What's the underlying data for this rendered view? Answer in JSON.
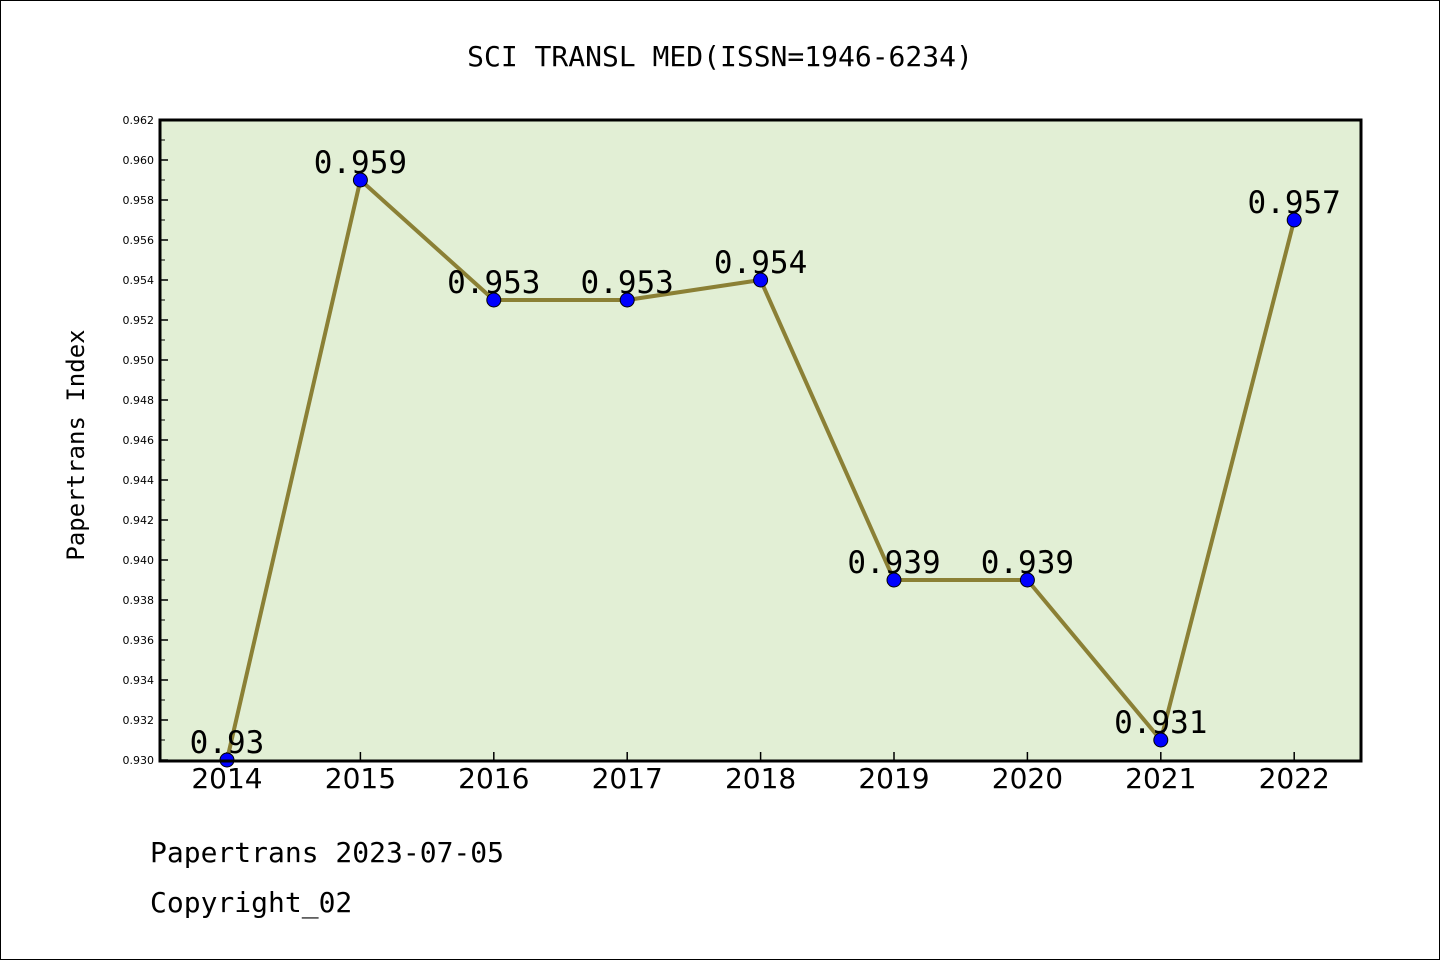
{
  "chart_data": {
    "type": "line",
    "title": "SCI TRANSL MED(ISSN=1946-6234)",
    "ylabel": "Papertrans Index",
    "xlabel": "",
    "categories": [
      "2014",
      "2015",
      "2016",
      "2017",
      "2018",
      "2019",
      "2020",
      "2021",
      "2022"
    ],
    "values": [
      0.93,
      0.959,
      0.953,
      0.953,
      0.954,
      0.939,
      0.939,
      0.931,
      0.957
    ],
    "data_labels": [
      "0.93",
      "0.959",
      "0.953",
      "0.953",
      "0.954",
      "0.939",
      "0.939",
      "0.931",
      "0.957"
    ],
    "ylim": [
      0.93,
      0.962
    ],
    "yticks": [
      "0.930",
      "0.932",
      "0.934",
      "0.936",
      "0.938",
      "0.940",
      "0.942",
      "0.944",
      "0.946",
      "0.948",
      "0.950",
      "0.952",
      "0.954",
      "0.956",
      "0.958",
      "0.960",
      "0.962"
    ],
    "grid": false,
    "colors": {
      "plot_background": "#e2efd5",
      "line": "#8b8035",
      "marker": "#0000ff"
    }
  },
  "footer": {
    "source": "Papertrans 2023-07-05",
    "copyright": "Copyright_02"
  }
}
